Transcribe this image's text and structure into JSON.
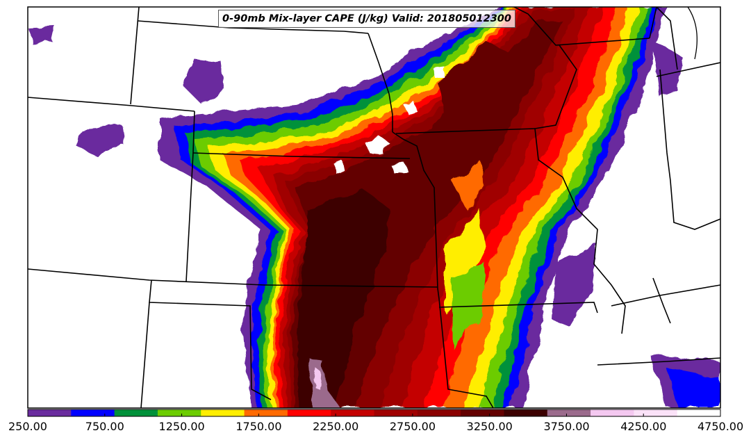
{
  "title": "0-90mb Mix-layer CAPE (J/kg) Valid: 201805012300",
  "colorbar": {
    "colors": [
      "#6a2c9e",
      "#0000ff",
      "#00913a",
      "#6ccc00",
      "#ffee00",
      "#ff6a00",
      "#ff0000",
      "#c40000",
      "#a00000",
      "#8a0000",
      "#640000",
      "#3c0000",
      "#9b6b8c",
      "#f4c8f0",
      "#fbe2f8",
      "#ffffff"
    ],
    "ticks": [
      "250.00",
      "750.00",
      "1250.00",
      "1750.00",
      "2250.00",
      "2750.00",
      "3250.00",
      "3750.00",
      "4250.00",
      "4750.00"
    ]
  }
}
